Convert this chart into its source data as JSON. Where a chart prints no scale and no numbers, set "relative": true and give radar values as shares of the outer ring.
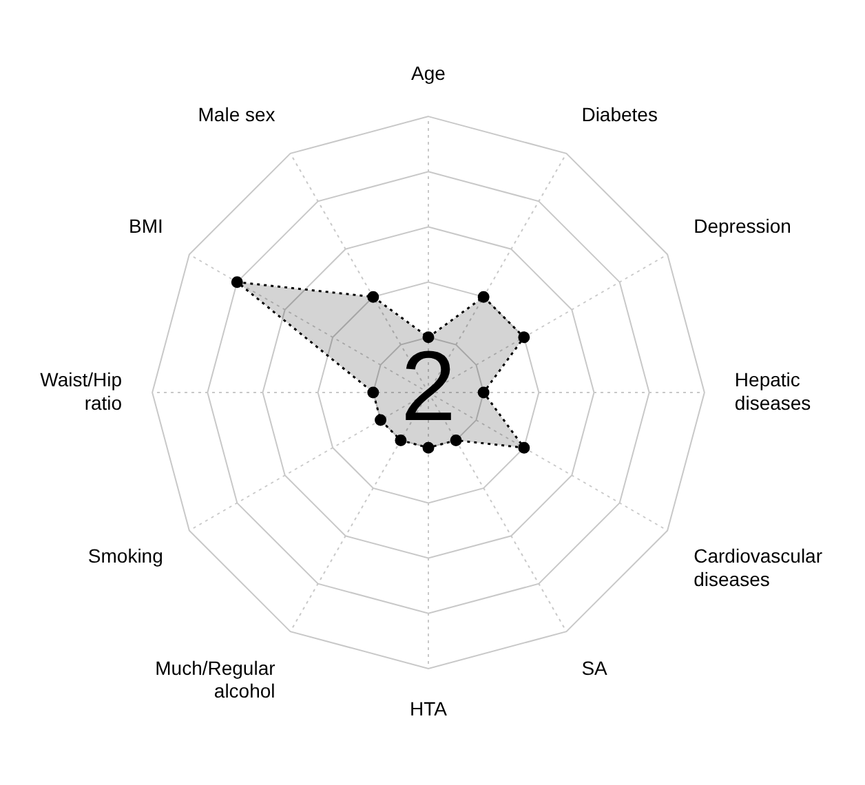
{
  "chart_data": {
    "type": "radar",
    "relative": true,
    "categories": [
      "Age",
      "Diabetes",
      "Depression",
      "Hepatic diseases",
      "Cardiovascular diseases",
      "SA",
      "HTA",
      "Much/Regular alcohol",
      "Smoking",
      "Waist/Hip ratio",
      "BMI",
      "Male sex"
    ],
    "series": [
      {
        "color": "#000000",
        "values": [
          0.2,
          0.4,
          0.4,
          0.2,
          0.4,
          0.2,
          0.2,
          0.2,
          0.2,
          0.2,
          0.8,
          0.4
        ]
      }
    ],
    "annotations": [
      "2"
    ],
    "grid": true,
    "legend": false,
    "marker": "circle",
    "line_style": "dotted"
  }
}
